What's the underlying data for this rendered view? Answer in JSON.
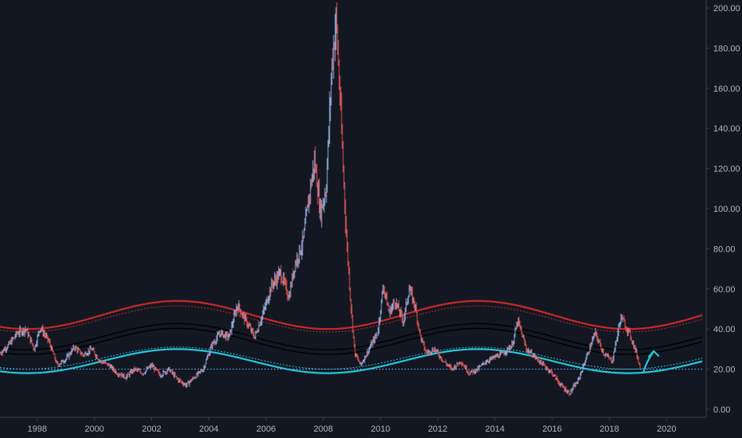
{
  "chart_data": {
    "type": "line",
    "title": "",
    "xlabel": "",
    "ylabel": "",
    "x_range": [
      1996.7,
      2021.3
    ],
    "ylim": [
      -4,
      204
    ],
    "y_ticks": [
      "200.00",
      "180.00",
      "160.00",
      "140.00",
      "120.00",
      "100.00",
      "80.00",
      "60.00",
      "40.00",
      "20.00",
      "0.00"
    ],
    "x_ticks": [
      "1998",
      "2000",
      "2002",
      "2004",
      "2006",
      "2008",
      "2010",
      "2012",
      "2014",
      "2016",
      "2018",
      "2020"
    ],
    "grid": false,
    "legend": "none",
    "colors": {
      "background": "#131722",
      "price_up": "#8fa8d8",
      "price_down": "#d9534f",
      "upper_band": "#c62828",
      "middle_band": "#000000",
      "lower_band": "#26c6da",
      "support_line": "#5b9bd5",
      "arrow": "#26c6da",
      "axis_text": "#b2b5be",
      "axis_line": "#3a3e4a"
    },
    "price": {
      "name": "",
      "x": [
        1996.7,
        1997.0,
        1997.3,
        1997.6,
        1997.9,
        1998.1,
        1998.4,
        1998.7,
        1999.0,
        1999.3,
        1999.6,
        1999.9,
        2000.2,
        2000.5,
        2000.8,
        2001.1,
        2001.4,
        2001.7,
        2002.0,
        2002.3,
        2002.6,
        2002.9,
        2003.2,
        2003.5,
        2003.8,
        2004.1,
        2004.4,
        2004.7,
        2005.0,
        2005.3,
        2005.6,
        2005.9,
        2006.2,
        2006.5,
        2006.8,
        2007.0,
        2007.3,
        2007.5,
        2007.7,
        2007.9,
        2008.1,
        2008.3,
        2008.45,
        2008.6,
        2008.8,
        2008.95,
        2009.1,
        2009.3,
        2009.6,
        2009.9,
        2010.1,
        2010.3,
        2010.5,
        2010.8,
        2011.0,
        2011.2,
        2011.4,
        2011.6,
        2011.9,
        2012.2,
        2012.5,
        2012.8,
        2013.1,
        2013.4,
        2013.7,
        2014.0,
        2014.3,
        2014.6,
        2014.8,
        2015.1,
        2015.4,
        2015.7,
        2016.0,
        2016.3,
        2016.6,
        2016.9,
        2017.2,
        2017.5,
        2017.8,
        2018.1,
        2018.4,
        2018.7,
        2018.9,
        2019.1
      ],
      "y": [
        28,
        32,
        38,
        40,
        30,
        41,
        34,
        22,
        25,
        31,
        27,
        30,
        24,
        22,
        18,
        16,
        20,
        18,
        22,
        17,
        20,
        15,
        12,
        16,
        20,
        32,
        38,
        36,
        52,
        44,
        36,
        48,
        62,
        68,
        56,
        72,
        84,
        106,
        124,
        98,
        110,
        172,
        195,
        150,
        88,
        55,
        28,
        22,
        30,
        38,
        62,
        48,
        54,
        44,
        60,
        52,
        36,
        28,
        30,
        24,
        20,
        24,
        18,
        20,
        24,
        26,
        28,
        32,
        44,
        30,
        26,
        22,
        18,
        12,
        8,
        14,
        26,
        38,
        28,
        24,
        46,
        38,
        30,
        20
      ]
    },
    "bands": {
      "period_years": 10.5,
      "phase_peak_year": 2002.9,
      "upper": {
        "name": "",
        "center": 47,
        "amplitude": 7
      },
      "upper_inner": {
        "name": "",
        "center": 45,
        "amplitude": 6.5
      },
      "middle": {
        "name": "",
        "center": 35,
        "amplitude": 6.5
      },
      "lower": {
        "name": "",
        "center": 24,
        "amplitude": 6
      },
      "lower_inner": {
        "name": "",
        "center": 25.5,
        "amplitude": 5.5
      }
    },
    "horizontal_lines": [
      20
    ],
    "annotations": [
      {
        "type": "arrow",
        "from": [
          2019.2,
          19
        ],
        "to": [
          2019.55,
          29
        ]
      }
    ]
  }
}
